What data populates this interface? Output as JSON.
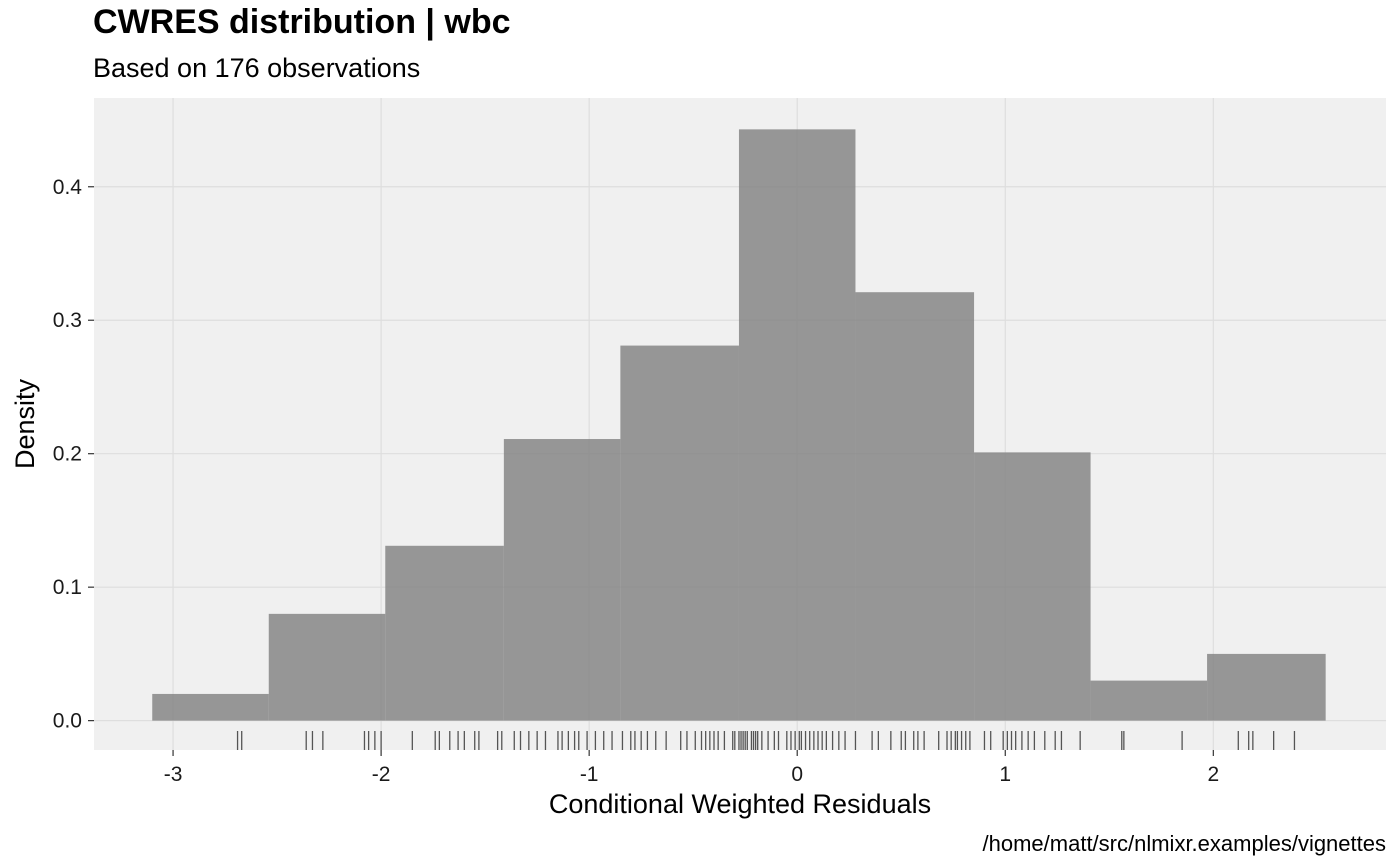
{
  "chart_data": {
    "type": "histogram",
    "title": "CWRES distribution | wbc",
    "subtitle": "Based on 176 observations",
    "xlabel": "Conditional Weighted Residuals",
    "ylabel": "Density",
    "caption": "/home/matt/src/nlmixr.examples/vignettes",
    "xlim": [
      -3.38,
      2.83
    ],
    "ylim": [
      -0.022,
      0.4665
    ],
    "x_ticks": [
      -3,
      -2,
      -1,
      0,
      1,
      2
    ],
    "x_tick_labels": [
      "-3",
      "-2",
      "-1",
      "0",
      "1",
      "2"
    ],
    "y_ticks": [
      0.0,
      0.1,
      0.2,
      0.3,
      0.4
    ],
    "y_tick_labels": [
      "0.0",
      "0.1",
      "0.2",
      "0.3",
      "0.4"
    ],
    "grid": true,
    "bins": [
      {
        "x0": -3.1,
        "x1": -2.54,
        "density": 0.02
      },
      {
        "x0": -2.54,
        "x1": -1.98,
        "density": 0.08
      },
      {
        "x0": -1.98,
        "x1": -1.41,
        "density": 0.131
      },
      {
        "x0": -1.41,
        "x1": -0.85,
        "density": 0.211
      },
      {
        "x0": -0.85,
        "x1": -0.28,
        "density": 0.281
      },
      {
        "x0": -0.28,
        "x1": 0.28,
        "density": 0.443
      },
      {
        "x0": 0.28,
        "x1": 0.85,
        "density": 0.321
      },
      {
        "x0": 0.85,
        "x1": 1.41,
        "density": 0.201
      },
      {
        "x0": 1.41,
        "x1": 1.97,
        "density": 0.03
      },
      {
        "x0": 1.97,
        "x1": 2.54,
        "density": 0.05
      }
    ],
    "rug": [
      -2.69,
      -2.67,
      -2.36,
      -2.33,
      -2.28,
      -2.08,
      -2.06,
      -2.03,
      -2.0,
      -1.85,
      -1.74,
      -1.72,
      -1.67,
      -1.63,
      -1.6,
      -1.55,
      -1.53,
      -1.44,
      -1.42,
      -1.36,
      -1.33,
      -1.29,
      -1.25,
      -1.21,
      -1.15,
      -1.13,
      -1.1,
      -1.07,
      -1.05,
      -1.01,
      -0.97,
      -0.93,
      -0.89,
      -0.84,
      -0.8,
      -0.78,
      -0.75,
      -0.72,
      -0.68,
      -0.63,
      -0.56,
      -0.53,
      -0.49,
      -0.46,
      -0.44,
      -0.42,
      -0.4,
      -0.38,
      -0.35,
      -0.31,
      -0.3,
      -0.28,
      -0.27,
      -0.26,
      -0.25,
      -0.24,
      -0.22,
      -0.21,
      -0.2,
      -0.19,
      -0.17,
      -0.14,
      -0.11,
      -0.09,
      -0.05,
      -0.03,
      -0.01,
      0.01,
      0.02,
      0.04,
      0.06,
      0.08,
      0.1,
      0.12,
      0.14,
      0.17,
      0.2,
      0.23,
      0.28,
      0.36,
      0.39,
      0.45,
      0.5,
      0.52,
      0.56,
      0.58,
      0.61,
      0.68,
      0.72,
      0.74,
      0.76,
      0.77,
      0.79,
      0.81,
      0.83,
      0.9,
      0.93,
      0.99,
      1.01,
      1.03,
      1.05,
      1.08,
      1.11,
      1.14,
      1.19,
      1.24,
      1.27,
      1.36,
      1.56,
      1.57,
      1.85,
      2.12,
      2.17,
      2.19,
      2.29,
      2.39
    ]
  },
  "colors": {
    "panel": "#f0f0f0",
    "grid": "#dedede",
    "bar": "#808080",
    "rug": "#555555",
    "tick": "#333333"
  }
}
